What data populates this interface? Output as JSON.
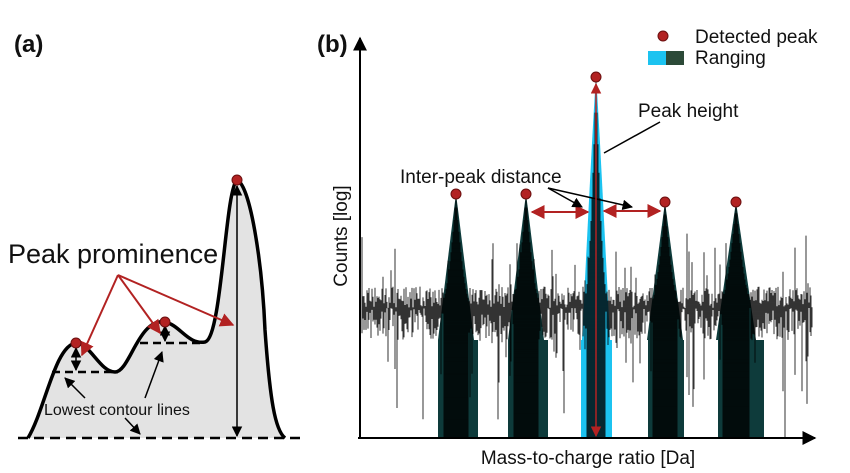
{
  "panel_a": {
    "label": "(a)",
    "prominence_label": "Peak prominence",
    "contour_label": "Lowest contour lines"
  },
  "panel_b": {
    "label": "(b)",
    "ylabel": "Counts [log]",
    "xlabel": "Mass-to-charge ratio [Da]",
    "peak_height_label": "Peak height",
    "inter_peak_label": "Inter-peak distance",
    "legend": {
      "detected": "Detected peak",
      "ranging": "Ranging"
    }
  },
  "colors": {
    "peak_marker": "#b22222",
    "arrow_red": "#b22222",
    "range_main": "#1cc3f0",
    "range_other": "#0e3b3b",
    "legend_dark": "#2c4a38",
    "fill_gray": "#e3e3e3",
    "noise": "#000000"
  }
}
